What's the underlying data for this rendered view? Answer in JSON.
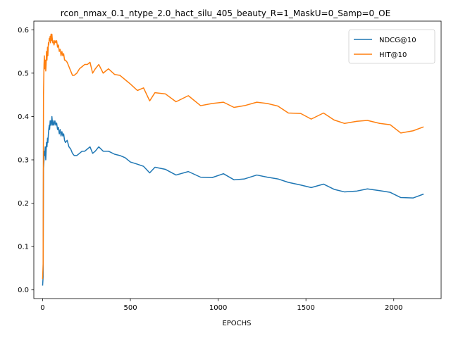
{
  "chart_data": {
    "type": "line",
    "title": "rcon_nmax_0.1_ntype_2.0_hact_silu_405_beauty_R=1_MaskU=0_Samp=0_OE",
    "xlabel": "EPOCHS",
    "ylabel": "",
    "xlim": [
      -50,
      2270
    ],
    "ylim": [
      -0.02,
      0.62
    ],
    "xticks": [
      "0",
      "500",
      "1000",
      "1500",
      "2000"
    ],
    "yticks": [
      "0.0",
      "0.1",
      "0.2",
      "0.3",
      "0.4",
      "0.5",
      "0.6"
    ],
    "grid": false,
    "legend_position": "top-right",
    "series": [
      {
        "name": "NDCG@10",
        "color": "#1f77b4",
        "points": [
          [
            0,
            0.01
          ],
          [
            3,
            0.03
          ],
          [
            5,
            0.28
          ],
          [
            8,
            0.3
          ],
          [
            10,
            0.32
          ],
          [
            12,
            0.31
          ],
          [
            15,
            0.33
          ],
          [
            18,
            0.3
          ],
          [
            20,
            0.32
          ],
          [
            22,
            0.34
          ],
          [
            25,
            0.33
          ],
          [
            28,
            0.35
          ],
          [
            30,
            0.34
          ],
          [
            33,
            0.36
          ],
          [
            35,
            0.37
          ],
          [
            38,
            0.38
          ],
          [
            40,
            0.37
          ],
          [
            43,
            0.39
          ],
          [
            45,
            0.38
          ],
          [
            48,
            0.39
          ],
          [
            50,
            0.38
          ],
          [
            53,
            0.4
          ],
          [
            55,
            0.39
          ],
          [
            58,
            0.38
          ],
          [
            60,
            0.39
          ],
          [
            65,
            0.38
          ],
          [
            70,
            0.39
          ],
          [
            75,
            0.38
          ],
          [
            80,
            0.385
          ],
          [
            85,
            0.37
          ],
          [
            90,
            0.375
          ],
          [
            95,
            0.36
          ],
          [
            100,
            0.37
          ],
          [
            105,
            0.355
          ],
          [
            110,
            0.365
          ],
          [
            115,
            0.355
          ],
          [
            120,
            0.36
          ],
          [
            125,
            0.345
          ],
          [
            130,
            0.34
          ],
          [
            140,
            0.345
          ],
          [
            150,
            0.33
          ],
          [
            160,
            0.325
          ],
          [
            170,
            0.315
          ],
          [
            180,
            0.31
          ],
          [
            195,
            0.31
          ],
          [
            210,
            0.315
          ],
          [
            225,
            0.32
          ],
          [
            240,
            0.32
          ],
          [
            255,
            0.325
          ],
          [
            270,
            0.33
          ],
          [
            285,
            0.315
          ],
          [
            300,
            0.32
          ],
          [
            320,
            0.33
          ],
          [
            345,
            0.32
          ],
          [
            375,
            0.32
          ],
          [
            410,
            0.313
          ],
          [
            440,
            0.31
          ],
          [
            470,
            0.305
          ],
          [
            500,
            0.295
          ],
          [
            540,
            0.29
          ],
          [
            575,
            0.285
          ],
          [
            610,
            0.27
          ],
          [
            640,
            0.283
          ],
          [
            700,
            0.278
          ],
          [
            760,
            0.265
          ],
          [
            830,
            0.273
          ],
          [
            900,
            0.26
          ],
          [
            965,
            0.259
          ],
          [
            1030,
            0.268
          ],
          [
            1090,
            0.254
          ],
          [
            1150,
            0.256
          ],
          [
            1220,
            0.265
          ],
          [
            1280,
            0.26
          ],
          [
            1340,
            0.256
          ],
          [
            1400,
            0.248
          ],
          [
            1470,
            0.242
          ],
          [
            1530,
            0.236
          ],
          [
            1600,
            0.244
          ],
          [
            1660,
            0.232
          ],
          [
            1720,
            0.226
          ],
          [
            1790,
            0.228
          ],
          [
            1850,
            0.233
          ],
          [
            1920,
            0.229
          ],
          [
            1980,
            0.225
          ],
          [
            2040,
            0.213
          ],
          [
            2110,
            0.212
          ],
          [
            2170,
            0.221
          ]
        ]
      },
      {
        "name": "HIT@10",
        "color": "#ff7f0e",
        "points": [
          [
            0,
            0.025
          ],
          [
            3,
            0.06
          ],
          [
            5,
            0.45
          ],
          [
            8,
            0.52
          ],
          [
            10,
            0.54
          ],
          [
            12,
            0.51
          ],
          [
            15,
            0.53
          ],
          [
            18,
            0.505
          ],
          [
            20,
            0.52
          ],
          [
            22,
            0.55
          ],
          [
            25,
            0.53
          ],
          [
            28,
            0.56
          ],
          [
            30,
            0.54
          ],
          [
            33,
            0.57
          ],
          [
            35,
            0.565
          ],
          [
            38,
            0.58
          ],
          [
            40,
            0.575
          ],
          [
            43,
            0.585
          ],
          [
            45,
            0.57
          ],
          [
            48,
            0.59
          ],
          [
            50,
            0.575
          ],
          [
            53,
            0.59
          ],
          [
            55,
            0.58
          ],
          [
            58,
            0.57
          ],
          [
            60,
            0.575
          ],
          [
            65,
            0.565
          ],
          [
            70,
            0.575
          ],
          [
            75,
            0.57
          ],
          [
            80,
            0.575
          ],
          [
            85,
            0.56
          ],
          [
            90,
            0.565
          ],
          [
            95,
            0.55
          ],
          [
            100,
            0.555
          ],
          [
            105,
            0.54
          ],
          [
            110,
            0.55
          ],
          [
            115,
            0.54
          ],
          [
            120,
            0.545
          ],
          [
            125,
            0.53
          ],
          [
            130,
            0.53
          ],
          [
            140,
            0.525
          ],
          [
            150,
            0.515
          ],
          [
            160,
            0.505
          ],
          [
            170,
            0.495
          ],
          [
            180,
            0.495
          ],
          [
            195,
            0.5
          ],
          [
            210,
            0.51
          ],
          [
            225,
            0.515
          ],
          [
            240,
            0.52
          ],
          [
            255,
            0.52
          ],
          [
            270,
            0.525
          ],
          [
            285,
            0.5
          ],
          [
            300,
            0.51
          ],
          [
            320,
            0.52
          ],
          [
            345,
            0.5
          ],
          [
            375,
            0.51
          ],
          [
            410,
            0.497
          ],
          [
            440,
            0.495
          ],
          [
            470,
            0.485
          ],
          [
            500,
            0.475
          ],
          [
            540,
            0.46
          ],
          [
            575,
            0.466
          ],
          [
            610,
            0.436
          ],
          [
            640,
            0.455
          ],
          [
            700,
            0.452
          ],
          [
            760,
            0.434
          ],
          [
            830,
            0.448
          ],
          [
            900,
            0.425
          ],
          [
            965,
            0.43
          ],
          [
            1030,
            0.433
          ],
          [
            1090,
            0.421
          ],
          [
            1150,
            0.425
          ],
          [
            1220,
            0.433
          ],
          [
            1280,
            0.43
          ],
          [
            1340,
            0.424
          ],
          [
            1400,
            0.408
          ],
          [
            1470,
            0.407
          ],
          [
            1530,
            0.394
          ],
          [
            1600,
            0.408
          ],
          [
            1660,
            0.392
          ],
          [
            1720,
            0.384
          ],
          [
            1790,
            0.389
          ],
          [
            1850,
            0.391
          ],
          [
            1920,
            0.384
          ],
          [
            1980,
            0.381
          ],
          [
            2040,
            0.362
          ],
          [
            2110,
            0.367
          ],
          [
            2170,
            0.376
          ]
        ]
      }
    ]
  }
}
